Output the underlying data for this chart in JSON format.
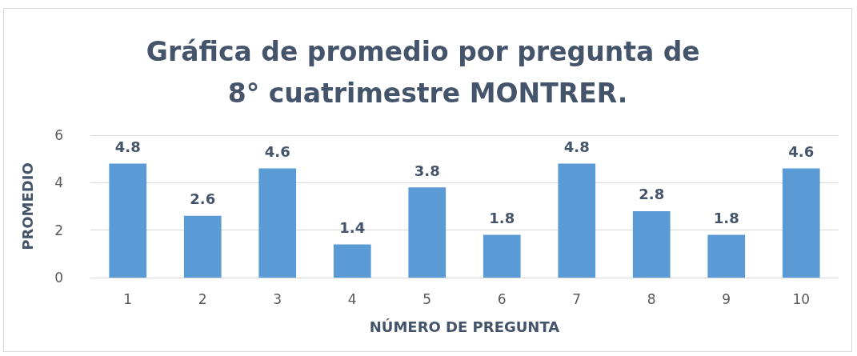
{
  "chart_data": {
    "type": "bar",
    "title": "Gráfica de promedio por pregunta de 8° cuatrimestre MONTRER.",
    "xlabel": "NÚMERO DE PREGUNTA",
    "ylabel": "PROMEDIO",
    "categories": [
      "1",
      "2",
      "3",
      "4",
      "5",
      "6",
      "7",
      "8",
      "9",
      "10"
    ],
    "values": [
      4.8,
      2.6,
      4.6,
      1.4,
      3.8,
      1.8,
      4.8,
      2.8,
      1.8,
      4.6
    ],
    "color": "#5b9bd5",
    "ylim": [
      0,
      6
    ],
    "yticks": [
      0,
      2,
      4,
      6
    ],
    "grid": "y",
    "data_labels": true
  }
}
